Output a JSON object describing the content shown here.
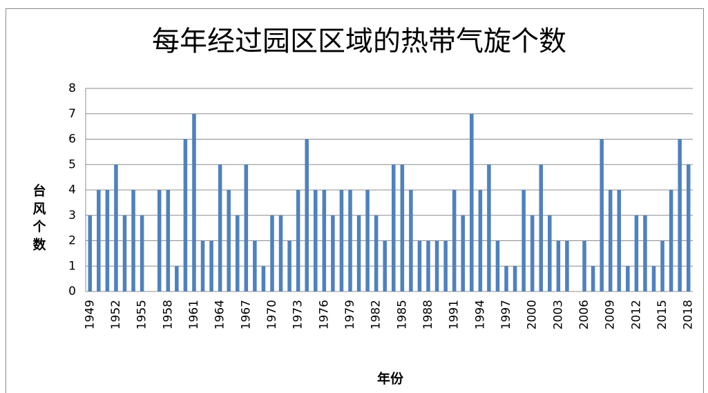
{
  "chart_data": {
    "type": "bar",
    "title": "每年经过园区区域的热带气旋个数",
    "x_label": "年份",
    "y_label": "台风个数",
    "categories": [
      "1949",
      null,
      null,
      "1952",
      null,
      null,
      "1955",
      null,
      null,
      "1958",
      null,
      null,
      "1961",
      null,
      null,
      "1964",
      null,
      null,
      "1967",
      null,
      null,
      "1970",
      null,
      null,
      "1973",
      null,
      null,
      "1976",
      null,
      null,
      "1979",
      null,
      null,
      "1982",
      null,
      null,
      "1985",
      null,
      null,
      "1988",
      null,
      null,
      "1991",
      null,
      null,
      "1994",
      null,
      null,
      "1997",
      null,
      null,
      "2000",
      null,
      null,
      "2003",
      null,
      null,
      "2006",
      null,
      null,
      "2009",
      null,
      null,
      "2012",
      null,
      null,
      "2015",
      null,
      null,
      "2018"
    ],
    "values": [
      3,
      4,
      4,
      5,
      3,
      4,
      3,
      0,
      4,
      4,
      1,
      6,
      7,
      2,
      2,
      5,
      4,
      3,
      5,
      2,
      1,
      3,
      3,
      2,
      4,
      6,
      4,
      4,
      3,
      4,
      4,
      3,
      4,
      3,
      2,
      5,
      5,
      4,
      2,
      2,
      2,
      2,
      4,
      3,
      7,
      4,
      5,
      2,
      1,
      1,
      4,
      3,
      5,
      3,
      2,
      2,
      0,
      2,
      1,
      6,
      4,
      4,
      1,
      3,
      3,
      1,
      2,
      4,
      6,
      5
    ],
    "color": "#4f81bd",
    "ylim": [
      0,
      8
    ],
    "yticks": [
      0,
      1,
      2,
      3,
      4,
      5,
      6,
      7,
      8
    ],
    "grid": true
  }
}
